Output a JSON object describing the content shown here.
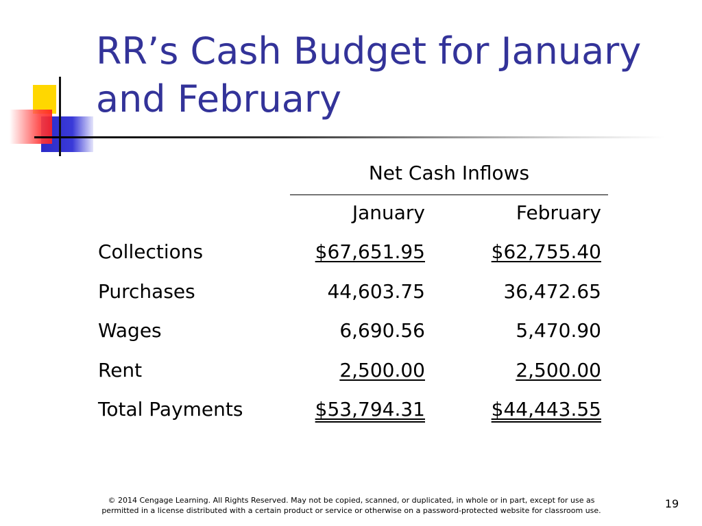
{
  "title": "RR’s Cash Budget for January and February",
  "table": {
    "group_header": "Net Cash Inflows",
    "columns": [
      "January",
      "February"
    ],
    "rows": [
      {
        "label": "Collections",
        "values": [
          "$67,651.95",
          "$62,755.40"
        ]
      },
      {
        "label": "Purchases",
        "values": [
          "44,603.75",
          "36,472.65"
        ]
      },
      {
        "label": "Wages",
        "values": [
          "6,690.56",
          "5,470.90"
        ]
      },
      {
        "label": "Rent",
        "values": [
          "2,500.00",
          "2,500.00"
        ]
      },
      {
        "label": "Total Payments",
        "values": [
          "$53,794.31",
          "$44,443.55"
        ]
      }
    ]
  },
  "footer": "© 2014 Cengage Learning. All Rights Reserved. May not be copied, scanned, or duplicated, in whole or in part, except for use as permitted in a license distributed with a certain product or service or otherwise on a password-protected website for classroom use.",
  "page_number": "19"
}
